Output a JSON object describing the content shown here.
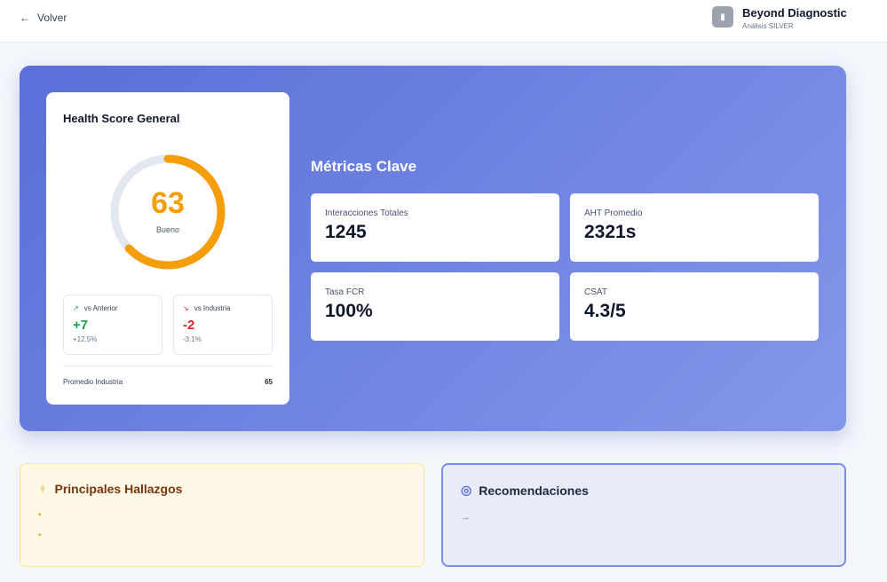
{
  "header": {
    "back_label": "Volver",
    "brand_title": "Beyond Diagnostic",
    "brand_subtitle": "Análisis SILVER"
  },
  "health": {
    "title": "Health Score General",
    "score": "63",
    "score_fraction": 0.63,
    "status": "Bueno",
    "vs_anterior": {
      "label": "vs Anterior",
      "value": "+7",
      "pct": "+12.5%"
    },
    "vs_industria": {
      "label": "vs Industria",
      "value": "-2",
      "pct": "-3.1%"
    },
    "industry_label": "Promedio Industria",
    "industry_value": "65"
  },
  "metrics": {
    "title": "Métricas Clave",
    "items": [
      {
        "label": "Interacciones Totales",
        "value": "1245"
      },
      {
        "label": "AHT Promedio",
        "value": "2321s"
      },
      {
        "label": "Tasa FCR",
        "value": "100%"
      },
      {
        "label": "CSAT",
        "value": "4.3/5"
      }
    ]
  },
  "findings": {
    "title": "Principales Hallazgos",
    "bullets": [
      "•",
      "•"
    ]
  },
  "recommendations": {
    "title": "Recomendaciones",
    "arrow": "→"
  },
  "colors": {
    "accent": "#f59e0b",
    "positive": "#16a34a",
    "negative": "#dc2626",
    "hero_start": "#5a6fd8",
    "hero_end": "#8497ea"
  }
}
